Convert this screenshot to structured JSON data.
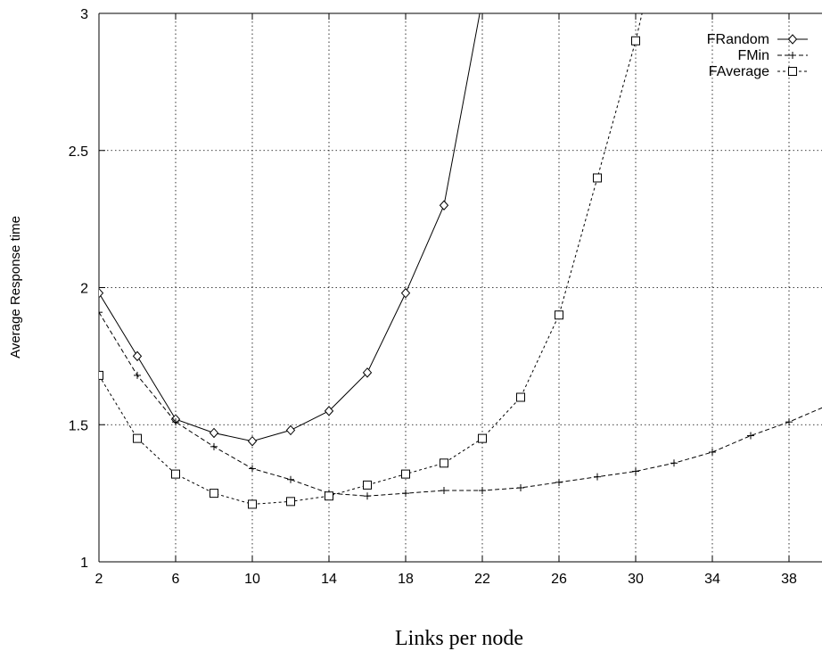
{
  "chart_data": {
    "type": "line",
    "title": "",
    "xlabel": "Links per node",
    "ylabel": "Average Response time",
    "xlim": [
      2,
      40
    ],
    "ylim": [
      1,
      3
    ],
    "xticks": [
      2,
      6,
      10,
      14,
      18,
      22,
      26,
      30,
      34,
      38
    ],
    "yticks": [
      1,
      1.5,
      2,
      2.5,
      3
    ],
    "ytick_labels": [
      "1",
      "1.5",
      "2",
      "2.5",
      "3"
    ],
    "grid": true,
    "legend_position": "top-right",
    "series": [
      {
        "name": "FRandom",
        "marker": "diamond",
        "line": "solid",
        "x": [
          2,
          4,
          6,
          8,
          10,
          12,
          14,
          16,
          18,
          20,
          22
        ],
        "y": [
          1.98,
          1.75,
          1.52,
          1.47,
          1.44,
          1.48,
          1.55,
          1.69,
          1.98,
          2.3,
          3.05
        ]
      },
      {
        "name": "FMin",
        "marker": "plus",
        "line": "dashed",
        "x": [
          2,
          4,
          6,
          8,
          10,
          12,
          14,
          16,
          18,
          20,
          22,
          24,
          26,
          28,
          30,
          32,
          34,
          36,
          38,
          40
        ],
        "y": [
          1.91,
          1.68,
          1.51,
          1.42,
          1.34,
          1.3,
          1.25,
          1.24,
          1.25,
          1.26,
          1.26,
          1.27,
          1.29,
          1.31,
          1.33,
          1.36,
          1.4,
          1.46,
          1.51,
          1.57
        ]
      },
      {
        "name": "FAverage",
        "marker": "square",
        "line": "dotted",
        "x": [
          2,
          4,
          6,
          8,
          10,
          12,
          14,
          16,
          18,
          20,
          22,
          24,
          26,
          28,
          30,
          31
        ],
        "y": [
          1.68,
          1.45,
          1.32,
          1.25,
          1.21,
          1.22,
          1.24,
          1.28,
          1.32,
          1.36,
          1.45,
          1.6,
          1.9,
          2.4,
          2.9,
          3.2
        ]
      }
    ]
  }
}
